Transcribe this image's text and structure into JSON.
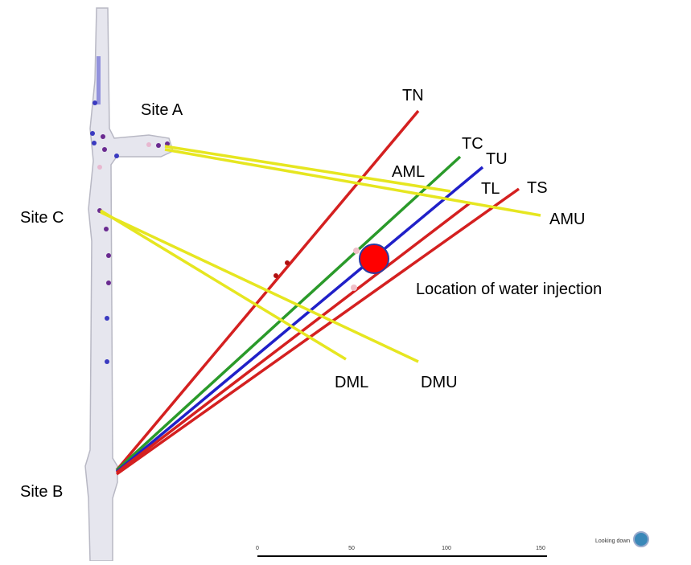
{
  "sites": [
    "Site A",
    "Site C",
    "Site B"
  ],
  "boreholes": [
    "TN",
    "TC",
    "TU",
    "AML",
    "TL",
    "TS",
    "AMU",
    "DML",
    "DMU"
  ],
  "annotation": "Location of water injection",
  "scale": {
    "ticks": [
      0,
      50,
      100,
      150
    ],
    "label": "Looking down"
  }
}
